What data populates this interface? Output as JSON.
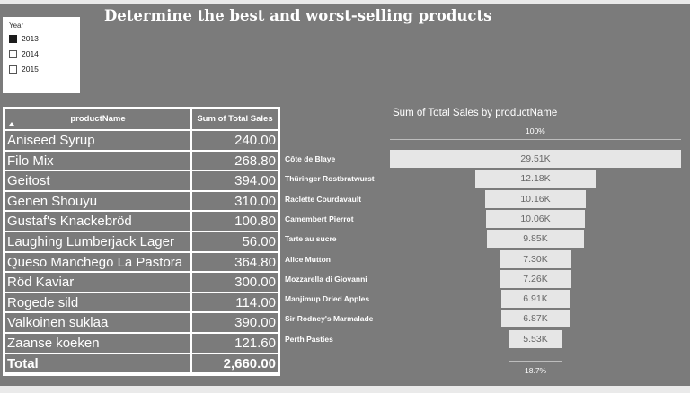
{
  "header": {
    "title": "Determine the best and worst-selling products"
  },
  "slicer": {
    "title": "Year",
    "options": [
      {
        "label": "2013",
        "checked": true
      },
      {
        "label": "2014",
        "checked": false
      },
      {
        "label": "2015",
        "checked": false
      }
    ]
  },
  "table": {
    "columns": [
      "productName",
      "Sum of Total Sales"
    ],
    "rows": [
      {
        "name": "Aniseed Syrup",
        "value": "240.00"
      },
      {
        "name": "Filo Mix",
        "value": "268.80"
      },
      {
        "name": "Geitost",
        "value": "394.00"
      },
      {
        "name": "Genen Shouyu",
        "value": "310.00"
      },
      {
        "name": "Gustaf's Knackebröd",
        "value": "100.80"
      },
      {
        "name": "Laughing Lumberjack Lager",
        "value": "56.00"
      },
      {
        "name": "Queso Manchego La Pastora",
        "value": "364.80"
      },
      {
        "name": "Röd Kaviar",
        "value": "300.00"
      },
      {
        "name": "Rogede sild",
        "value": "114.00"
      },
      {
        "name": "Valkoinen suklaa",
        "value": "390.00"
      },
      {
        "name": "Zaanse koeken",
        "value": "121.60"
      }
    ],
    "total": {
      "name": "Total",
      "value": "2,660.00"
    }
  },
  "chart_data": {
    "type": "bar",
    "subtype": "funnel",
    "title": "Sum of Total Sales by productName",
    "top_percent_label": "100%",
    "bottom_percent_label": "18.7%",
    "categories": [
      "Côte de Blaye",
      "Thüringer Rostbratwurst",
      "Raclette Courdavault",
      "Camembert Pierrot",
      "Tarte au sucre",
      "Alice Mutton",
      "Mozzarella di Giovanni",
      "Manjimup Dried Apples",
      "Sir Rodney's Marmalade",
      "Perth Pasties"
    ],
    "values": [
      29510,
      12180,
      10160,
      10060,
      9850,
      7300,
      7260,
      6910,
      6870,
      5530
    ],
    "value_labels": [
      "29.51K",
      "12.18K",
      "10.16K",
      "10.06K",
      "9.85K",
      "7.30K",
      "7.26K",
      "6.91K",
      "6.87K",
      "5.53K"
    ],
    "bar_color": "#e6e6e6"
  }
}
